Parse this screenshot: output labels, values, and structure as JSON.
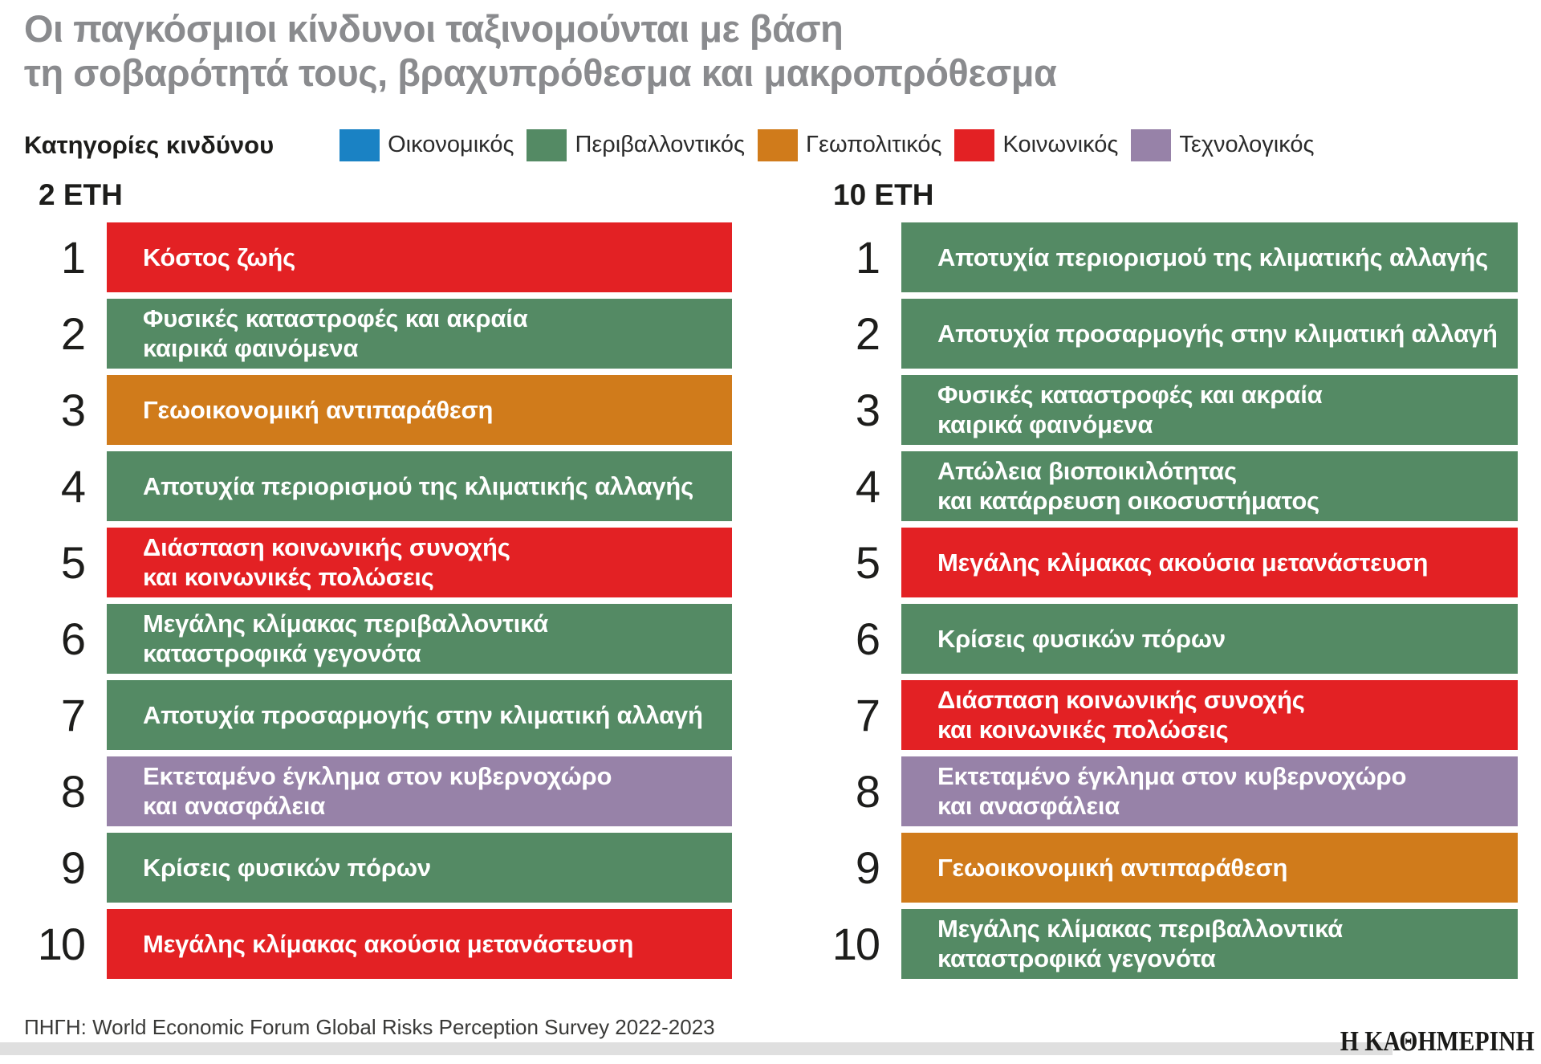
{
  "title": "Οι παγκόσμιοι κίνδυνοι ταξινομούνται με βάση\nτη σοβαρότητά τους, βραχυπρόθεσμα και μακροπρόθεσμα",
  "legend": {
    "title": "Κατηγορίες κινδύνου",
    "categories": [
      {
        "label": "Οικονομικός",
        "color": "#1a82c4"
      },
      {
        "label": "Περιβαλλοντικός",
        "color": "#548a64"
      },
      {
        "label": "Γεωπολιτικός",
        "color": "#d07b1b"
      },
      {
        "label": "Κοινωνικός",
        "color": "#e32124"
      },
      {
        "label": "Τεχνολογικός",
        "color": "#9782a8"
      }
    ]
  },
  "chart_data": {
    "type": "table",
    "title": "Οι παγκόσμιοι κίνδυνοι ταξινομούνται με βάση τη σοβαρότητά τους, βραχυπρόθεσμα και μακροπρόθεσμα",
    "legend_title": "Κατηγορίες κινδύνου",
    "legend_position": "top",
    "categories": [
      {
        "label": "Οικονομικός",
        "color": "#1a82c4"
      },
      {
        "label": "Περιβαλλοντικός",
        "color": "#548a64"
      },
      {
        "label": "Γεωπολιτικός",
        "color": "#d07b1b"
      },
      {
        "label": "Κοινωνικός",
        "color": "#e32124"
      },
      {
        "label": "Τεχνολογικός",
        "color": "#9782a8"
      }
    ],
    "columns": [
      {
        "header": "2 ΕΤΗ",
        "rows": [
          {
            "rank": 1,
            "label": "Κόστος ζωής",
            "category": "Κοινωνικός"
          },
          {
            "rank": 2,
            "label": "Φυσικές καταστροφές και ακραία\nκαιρικά φαινόμενα",
            "category": "Περιβαλλοντικός"
          },
          {
            "rank": 3,
            "label": "Γεωοικονομική αντιπαράθεση",
            "category": "Γεωπολιτικός"
          },
          {
            "rank": 4,
            "label": "Αποτυχία περιορισμού της κλιματικής αλλαγής",
            "category": "Περιβαλλοντικός"
          },
          {
            "rank": 5,
            "label": "Διάσπαση κοινωνικής συνοχής\nκαι κοινωνικές πολώσεις",
            "category": "Κοινωνικός"
          },
          {
            "rank": 6,
            "label": "Μεγάλης κλίμακας περιβαλλοντικά\nκαταστροφικά γεγονότα",
            "category": "Περιβαλλοντικός"
          },
          {
            "rank": 7,
            "label": "Αποτυχία προσαρμογής στην κλιματική αλλαγή",
            "category": "Περιβαλλοντικός"
          },
          {
            "rank": 8,
            "label": "Εκτεταμένο έγκλημα στον κυβερνοχώρο\nκαι ανασφάλεια",
            "category": "Τεχνολογικός"
          },
          {
            "rank": 9,
            "label": "Κρίσεις φυσικών πόρων",
            "category": "Περιβαλλοντικός"
          },
          {
            "rank": 10,
            "label": "Μεγάλης κλίμακας ακούσια μετανάστευση",
            "category": "Κοινωνικός"
          }
        ]
      },
      {
        "header": "10 ΕΤΗ",
        "rows": [
          {
            "rank": 1,
            "label": "Αποτυχία περιορισμού της κλιματικής αλλαγής",
            "category": "Περιβαλλοντικός"
          },
          {
            "rank": 2,
            "label": "Αποτυχία προσαρμογής στην κλιματική αλλαγή",
            "category": "Περιβαλλοντικός"
          },
          {
            "rank": 3,
            "label": "Φυσικές καταστροφές και ακραία\nκαιρικά φαινόμενα",
            "category": "Περιβαλλοντικός"
          },
          {
            "rank": 4,
            "label": "Απώλεια βιοποικιλότητας\nκαι κατάρρευση οικοσυστήματος",
            "category": "Περιβαλλοντικός"
          },
          {
            "rank": 5,
            "label": "Μεγάλης κλίμακας ακούσια μετανάστευση",
            "category": "Κοινωνικός"
          },
          {
            "rank": 6,
            "label": "Κρίσεις φυσικών πόρων",
            "category": "Περιβαλλοντικός"
          },
          {
            "rank": 7,
            "label": "Διάσπαση κοινωνικής συνοχής\nκαι κοινωνικές πολώσεις",
            "category": "Κοινωνικός"
          },
          {
            "rank": 8,
            "label": "Εκτεταμένο έγκλημα στον κυβερνοχώρο\nκαι ανασφάλεια",
            "category": "Τεχνολογικός"
          },
          {
            "rank": 9,
            "label": "Γεωοικονομική αντιπαράθεση",
            "category": "Γεωπολιτικός"
          },
          {
            "rank": 10,
            "label": "Μεγάλης κλίμακας περιβαλλοντικά\nκαταστροφικά γεγονότα",
            "category": "Περιβαλλοντικός"
          }
        ]
      }
    ],
    "source": "ΠΗΓΗ: World Economic Forum Global Risks Perception Survey 2022-2023",
    "brand": "Η ΚΑΘΗΜΕΡΙΝΗ"
  },
  "footer": {
    "source": "ΠΗΓΗ: World Economic Forum Global Risks Perception Survey 2022-2023",
    "brand": "Η ΚΑΘΗΜΕΡΙΝΗ"
  }
}
